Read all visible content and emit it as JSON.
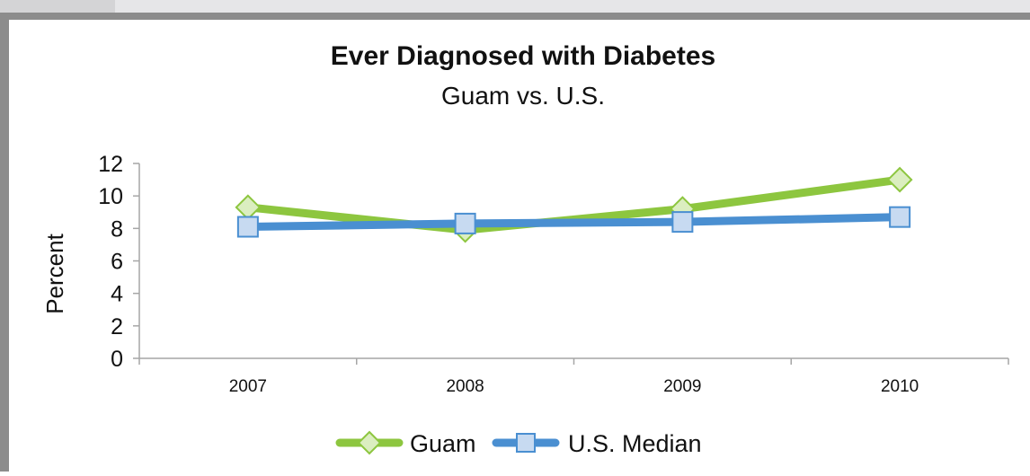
{
  "chart_data": {
    "type": "line",
    "title": "Ever Diagnosed with Diabetes",
    "subtitle": "Guam vs. U.S.",
    "xlabel": "",
    "ylabel": "Percent",
    "categories": [
      "2007",
      "2008",
      "2009",
      "2010"
    ],
    "ylim": [
      0,
      12
    ],
    "yticks": [
      "0",
      "2",
      "4",
      "6",
      "8",
      "10",
      "12"
    ],
    "grid": false,
    "legend_position": "bottom",
    "series": [
      {
        "name": "Guam",
        "values": [
          9.3,
          7.9,
          9.2,
          11.0
        ],
        "color": "#8dc63f",
        "marker_fill": "#dbeec0",
        "marker": "diamond"
      },
      {
        "name": "U.S. Median",
        "values": [
          8.1,
          8.3,
          8.4,
          8.7
        ],
        "color": "#4a8fd1",
        "marker_fill": "#c7daf1",
        "marker": "square"
      }
    ]
  }
}
